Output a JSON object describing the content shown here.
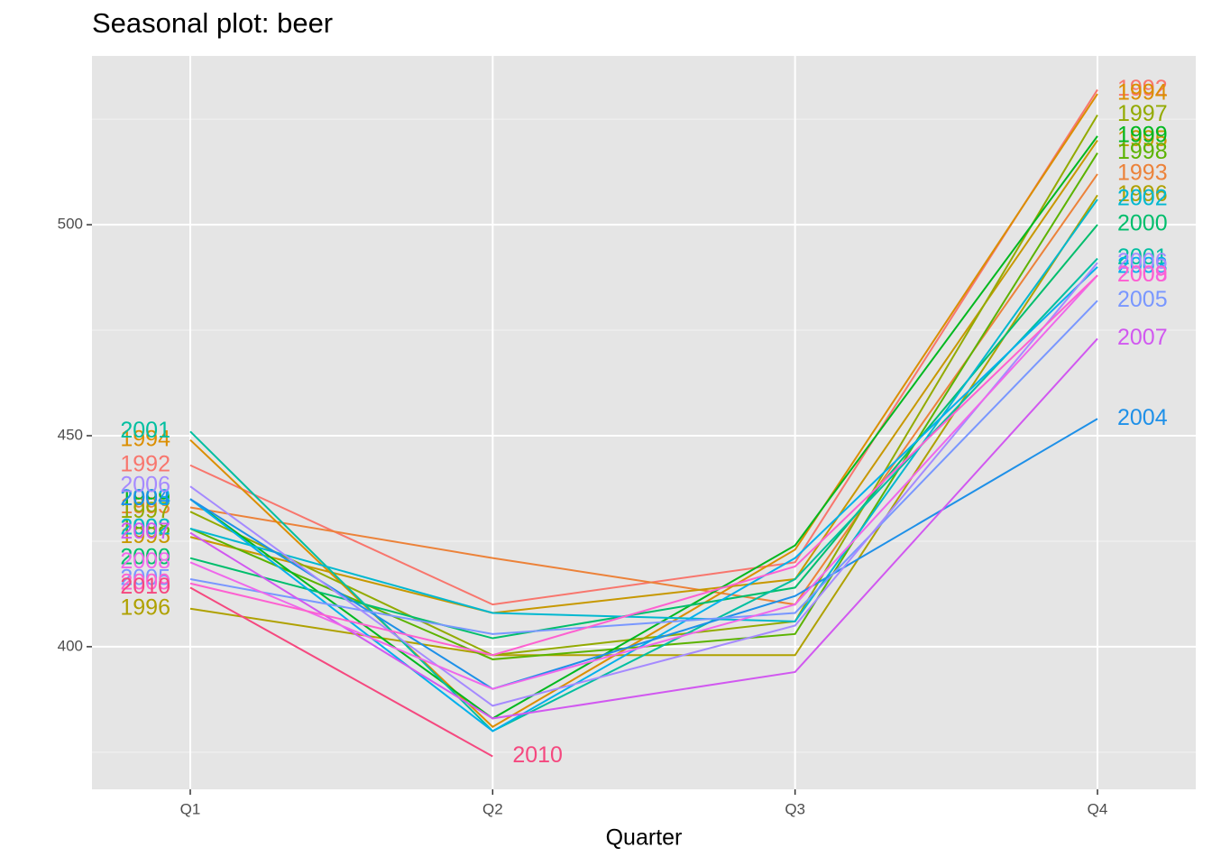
{
  "chart_data": {
    "type": "line",
    "title": "Seasonal plot: beer",
    "x_label": "Quarter",
    "categories": [
      "Q1",
      "Q2",
      "Q3",
      "Q4"
    ],
    "ylim": [
      366.2,
      540
    ],
    "yticks": [
      400,
      450,
      500
    ],
    "minor_yticks": [
      375,
      425,
      475,
      525
    ],
    "grid": true,
    "series": [
      {
        "name": "1992",
        "color": "#F8766D",
        "values": [
          443,
          410,
          420,
          532
        ]
      },
      {
        "name": "1993",
        "color": "#EC8239",
        "values": [
          433,
          421,
          410,
          512
        ]
      },
      {
        "name": "1994",
        "color": "#DB8E00",
        "values": [
          449,
          381,
          423,
          531
        ]
      },
      {
        "name": "1995",
        "color": "#C79800",
        "values": [
          426,
          408,
          416,
          520
        ]
      },
      {
        "name": "1996",
        "color": "#AFA100",
        "values": [
          409,
          398,
          398,
          507
        ]
      },
      {
        "name": "1997",
        "color": "#93AA00",
        "values": [
          432,
          398,
          406,
          526
        ]
      },
      {
        "name": "1998",
        "color": "#5BB300",
        "values": [
          428,
          397,
          403,
          517
        ]
      },
      {
        "name": "1999",
        "color": "#00B81F",
        "values": [
          435,
          383,
          424,
          521
        ]
      },
      {
        "name": "2000",
        "color": "#00BE6C",
        "values": [
          421,
          402,
          414,
          500
        ]
      },
      {
        "name": "2001",
        "color": "#00BFA0",
        "values": [
          451,
          380,
          416,
          492
        ]
      },
      {
        "name": "2002",
        "color": "#00B8D0",
        "values": [
          428,
          408,
          406,
          506
        ]
      },
      {
        "name": "2003",
        "color": "#00B0EC",
        "values": [
          435,
          380,
          421,
          490
        ]
      },
      {
        "name": "2004",
        "color": "#1E90E8",
        "values": [
          435,
          390,
          412,
          454
        ]
      },
      {
        "name": "2005",
        "color": "#7997FF",
        "values": [
          416,
          403,
          408,
          482
        ]
      },
      {
        "name": "2006",
        "color": "#A58AFF",
        "values": [
          438,
          386,
          405,
          491
        ]
      },
      {
        "name": "2007",
        "color": "#D158F0",
        "values": [
          427,
          383,
          394,
          473
        ]
      },
      {
        "name": "2008",
        "color": "#EF67EB",
        "values": [
          420,
          390,
          410,
          488
        ]
      },
      {
        "name": "2009",
        "color": "#FD61D1",
        "values": [
          415,
          398,
          419,
          488
        ]
      },
      {
        "name": "2010",
        "color": "#F5487F",
        "values": [
          414,
          374,
          null,
          null
        ]
      }
    ]
  }
}
